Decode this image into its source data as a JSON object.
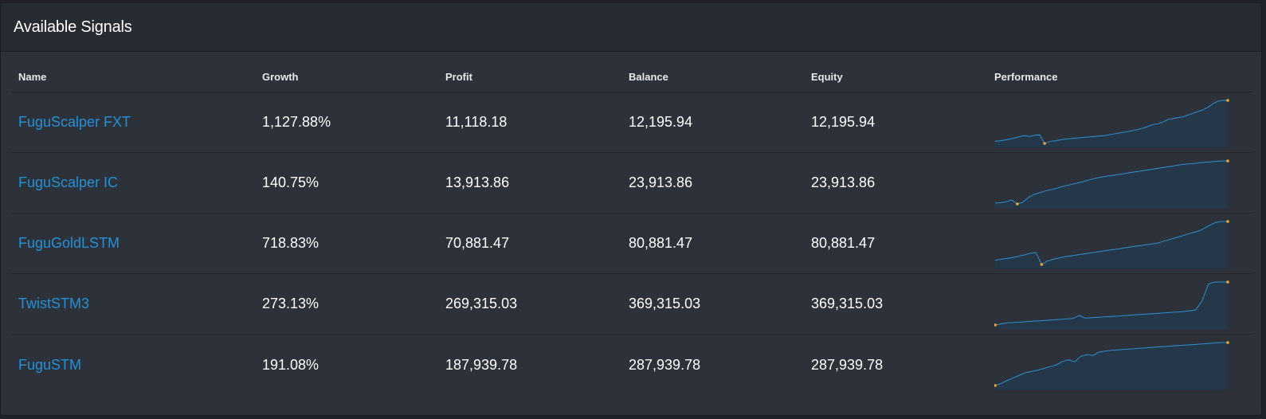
{
  "panel": {
    "title": "Available Signals"
  },
  "columns": {
    "name": "Name",
    "growth": "Growth",
    "profit": "Profit",
    "balance": "Balance",
    "equity": "Equity",
    "performance": "Performance"
  },
  "colors": {
    "link": "#2590d6",
    "spark_line": "#2e8fd0",
    "spark_fill": "#25384a",
    "spark_marker": "#f0a530",
    "panel_bg": "#2d323a",
    "header_bg": "#272b32"
  },
  "signals": [
    {
      "name": "FuguScalper FXT",
      "growth": "1,127.88%",
      "profit": "11,118.18",
      "balance": "12,195.94",
      "equity": "12,195.94",
      "performance": [
        0.05,
        0.06,
        0.08,
        0.1,
        0.13,
        0.16,
        0.18,
        0.16,
        0.19,
        0.2,
        0.0,
        0.04,
        0.06,
        0.08,
        0.1,
        0.11,
        0.12,
        0.13,
        0.14,
        0.15,
        0.16,
        0.17,
        0.18,
        0.2,
        0.22,
        0.24,
        0.26,
        0.28,
        0.3,
        0.33,
        0.36,
        0.4,
        0.44,
        0.46,
        0.5,
        0.56,
        0.58,
        0.6,
        0.62,
        0.66,
        0.7,
        0.74,
        0.78,
        0.84,
        0.92,
        0.98,
        1.0,
        1.0
      ]
    },
    {
      "name": "FuguScalper IC",
      "growth": "140.75%",
      "profit": "13,913.86",
      "balance": "23,913.86",
      "equity": "23,913.86",
      "performance": [
        0.02,
        0.03,
        0.05,
        0.09,
        0.0,
        0.04,
        0.15,
        0.22,
        0.26,
        0.3,
        0.33,
        0.36,
        0.4,
        0.43,
        0.46,
        0.49,
        0.52,
        0.56,
        0.59,
        0.62,
        0.64,
        0.66,
        0.68,
        0.7,
        0.72,
        0.74,
        0.76,
        0.78,
        0.8,
        0.82,
        0.84,
        0.86,
        0.88,
        0.9,
        0.92,
        0.93,
        0.94,
        0.96,
        0.97,
        0.98,
        0.99,
        1.0,
        1.0
      ]
    },
    {
      "name": "FuguGoldLSTM",
      "growth": "718.83%",
      "profit": "70,881.47",
      "balance": "80,881.47",
      "equity": "80,881.47",
      "performance": [
        0.1,
        0.12,
        0.14,
        0.16,
        0.19,
        0.22,
        0.26,
        0.28,
        0.0,
        0.08,
        0.12,
        0.15,
        0.18,
        0.2,
        0.22,
        0.24,
        0.26,
        0.28,
        0.3,
        0.32,
        0.34,
        0.36,
        0.38,
        0.4,
        0.42,
        0.44,
        0.46,
        0.48,
        0.5,
        0.54,
        0.58,
        0.62,
        0.66,
        0.7,
        0.74,
        0.78,
        0.84,
        0.92,
        0.98,
        1.0,
        1.0
      ]
    },
    {
      "name": "TwistSTM3",
      "growth": "273.13%",
      "profit": "269,315.03",
      "balance": "369,315.03",
      "equity": "369,315.03",
      "performance": [
        0.0,
        0.03,
        0.05,
        0.06,
        0.07,
        0.08,
        0.09,
        0.1,
        0.11,
        0.12,
        0.13,
        0.14,
        0.15,
        0.22,
        0.16,
        0.17,
        0.18,
        0.19,
        0.2,
        0.21,
        0.22,
        0.23,
        0.24,
        0.25,
        0.26,
        0.27,
        0.28,
        0.29,
        0.3,
        0.31,
        0.33,
        0.35,
        0.55,
        0.95,
        1.0,
        1.0,
        1.0
      ]
    },
    {
      "name": "FuguSTM",
      "growth": "191.08%",
      "profit": "187,939.78",
      "balance": "287,939.78",
      "equity": "287,939.78",
      "performance": [
        0.0,
        0.05,
        0.12,
        0.18,
        0.24,
        0.3,
        0.33,
        0.36,
        0.4,
        0.44,
        0.48,
        0.56,
        0.6,
        0.55,
        0.68,
        0.72,
        0.7,
        0.78,
        0.8,
        0.82,
        0.83,
        0.84,
        0.85,
        0.86,
        0.87,
        0.88,
        0.89,
        0.9,
        0.91,
        0.92,
        0.93,
        0.94,
        0.95,
        0.96,
        0.97,
        0.98,
        0.99,
        1.0,
        1.0
      ]
    }
  ]
}
